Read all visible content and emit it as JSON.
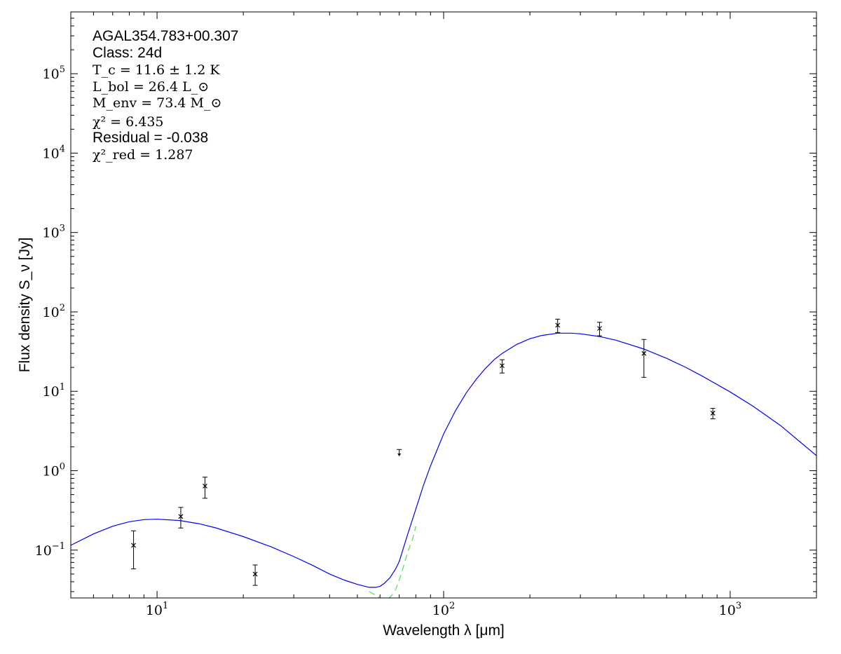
{
  "chart_data": {
    "type": "scatter",
    "annotations": {
      "source": "AGAL354.783+00.307",
      "class": "Class: 24d",
      "tc": "T_c = 11.6 ± 1.2 K",
      "lbol": "L_bol = 26.4 L_⊙",
      "menv": "M_env = 73.4 M_⊙",
      "chi2": "χ² = 6.435",
      "residual": "Residual = -0.038",
      "chi2red": "χ²_red = 1.287"
    },
    "xlabel": "Wavelength λ [μm]",
    "ylabel": "Flux density S_ν [Jy]",
    "xscale": "log",
    "yscale": "log",
    "xlim": [
      5,
      2000
    ],
    "ylim": [
      0.025,
      600000
    ],
    "xticks": [
      10,
      100,
      1000
    ],
    "yticks": [
      0.1,
      1,
      10,
      100,
      1000,
      10000,
      100000
    ],
    "xtick_labels": [
      {
        "base": "10",
        "exp": "1"
      },
      {
        "base": "10",
        "exp": "2"
      },
      {
        "base": "10",
        "exp": "3"
      }
    ],
    "ytick_labels": [
      {
        "base": "10",
        "exp": "−1"
      },
      {
        "base": "10",
        "exp": "0"
      },
      {
        "base": "10",
        "exp": "1"
      },
      {
        "base": "10",
        "exp": "2"
      },
      {
        "base": "10",
        "exp": "3"
      },
      {
        "base": "10",
        "exp": "4"
      },
      {
        "base": "10",
        "exp": "5"
      }
    ],
    "points": [
      {
        "x": 8.28,
        "y": 0.115,
        "ylo": 0.058,
        "yhi": 0.175
      },
      {
        "x": 12.1,
        "y": 0.265,
        "ylo": 0.19,
        "yhi": 0.345
      },
      {
        "x": 14.7,
        "y": 0.64,
        "ylo": 0.45,
        "yhi": 0.83
      },
      {
        "x": 22.0,
        "y": 0.05,
        "ylo": 0.036,
        "yhi": 0.065
      },
      {
        "x": 160,
        "y": 21,
        "ylo": 17,
        "yhi": 25
      },
      {
        "x": 250,
        "y": 68,
        "ylo": 55,
        "yhi": 81
      },
      {
        "x": 350,
        "y": 62,
        "ylo": 50,
        "yhi": 74
      },
      {
        "x": 500,
        "y": 30,
        "ylo": 15,
        "yhi": 45
      },
      {
        "x": 870,
        "y": 5.3,
        "ylo": 4.5,
        "yhi": 6.1
      }
    ],
    "upper_limits": [
      {
        "x": 70,
        "y": 1.85,
        "ytip": 1.55
      }
    ],
    "model_total": {
      "color": "#0000ff",
      "x": [
        5,
        6,
        7,
        8,
        9,
        10,
        12,
        14,
        16,
        20,
        25,
        30,
        35,
        40,
        45,
        50,
        55,
        58,
        60,
        62,
        65,
        68,
        70,
        72,
        75,
        80,
        85,
        90,
        100,
        110,
        120,
        130,
        140,
        150,
        160,
        180,
        200,
        220,
        250,
        280,
        300,
        350,
        400,
        500,
        600,
        700,
        800,
        1000,
        1200,
        1500,
        2000
      ],
      "y": [
        0.115,
        0.16,
        0.2,
        0.228,
        0.242,
        0.245,
        0.236,
        0.215,
        0.191,
        0.148,
        0.11,
        0.083,
        0.064,
        0.05,
        0.042,
        0.037,
        0.034,
        0.034,
        0.035,
        0.038,
        0.045,
        0.058,
        0.072,
        0.1,
        0.16,
        0.33,
        0.65,
        1.15,
        2.9,
        5.7,
        9.6,
        14.2,
        19.5,
        25,
        30,
        39,
        46,
        50.5,
        54,
        54,
        53,
        49,
        44,
        34,
        26,
        20,
        15.5,
        9.8,
        6.5,
        3.7,
        1.55
      ]
    },
    "model_cold": {
      "color": "#55dd55",
      "style": "dashed",
      "x": [
        55,
        58,
        60,
        62,
        64,
        66,
        68,
        70,
        72,
        75,
        78,
        80
      ],
      "y": [
        0.03,
        0.027,
        0.025,
        0.024,
        0.0245,
        0.027,
        0.032,
        0.042,
        0.058,
        0.095,
        0.14,
        0.2
      ]
    }
  }
}
